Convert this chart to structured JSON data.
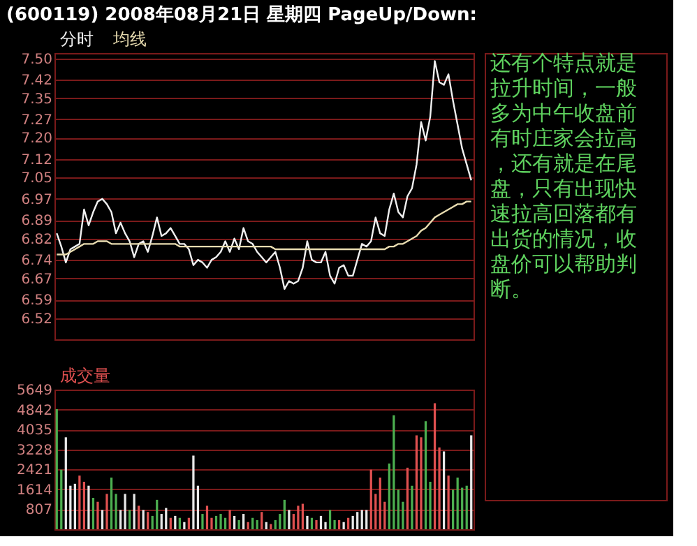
{
  "chart_data": [
    {
      "type": "line",
      "title": "(600119) 2008年08月21日 星期四 PageUp/Down:",
      "legend": "top left",
      "grid": "y",
      "tick_labels": "y",
      "annotations": [
        "还有个特点就是拉升时间，一般多为中午收盘前有时庄家会拉高，还有就是在尾盘，只有出现快速拉高回落都有出货的情况，收盘价可以帮助判断。"
      ],
      "categories": [
        null,
        null,
        null,
        null,
        null,
        null,
        null,
        null,
        null,
        null,
        null,
        null,
        null,
        null,
        null,
        null,
        null,
        null,
        null,
        null,
        null,
        null,
        null,
        null,
        null,
        null,
        null,
        null,
        null,
        null,
        null,
        null,
        null,
        null,
        null,
        null,
        null,
        null,
        null,
        null,
        null,
        null,
        null,
        null,
        null,
        null,
        null,
        null,
        null,
        null,
        null,
        null,
        null,
        null,
        null,
        null,
        null,
        null,
        null,
        null,
        null,
        null,
        null,
        null,
        null,
        null,
        null,
        null,
        null,
        null,
        null,
        null,
        null,
        null,
        null,
        null,
        null,
        null,
        null,
        null,
        null,
        null,
        null,
        null,
        null,
        null,
        null,
        null,
        null,
        null,
        null,
        null
      ],
      "ylim": [
        6.44,
        7.52
      ],
      "yticks": [
        {
          "value": 7.5,
          "label": "7.50"
        },
        7.42,
        7.35,
        7.27,
        {
          "value": 7.2,
          "label": "7.20"
        },
        7.12,
        7.05,
        6.97,
        6.89,
        6.82,
        6.74,
        6.67,
        6.59,
        6.52
      ],
      "series": [
        {
          "name": "分时",
          "color": "#f0f0f0",
          "values": [
            6.84,
            6.79,
            6.73,
            6.78,
            6.79,
            6.8,
            6.93,
            6.87,
            6.92,
            6.96,
            6.97,
            6.95,
            6.92,
            6.84,
            6.88,
            6.84,
            6.81,
            6.75,
            6.8,
            6.81,
            6.77,
            6.83,
            6.9,
            6.83,
            6.84,
            6.86,
            6.83,
            6.8,
            6.8,
            6.78,
            6.72,
            6.74,
            6.73,
            6.71,
            6.74,
            6.75,
            6.77,
            6.81,
            6.77,
            6.82,
            6.78,
            6.86,
            6.81,
            6.8,
            6.77,
            6.75,
            6.73,
            6.75,
            6.77,
            6.71,
            6.63,
            6.66,
            6.65,
            6.66,
            6.71,
            6.81,
            6.74,
            6.73,
            6.73,
            6.77,
            6.68,
            6.65,
            6.71,
            6.72,
            6.68,
            6.68,
            6.74,
            6.8,
            6.79,
            6.81,
            6.9,
            6.84,
            6.83,
            6.93,
            6.99,
            6.92,
            6.9,
            6.98,
            7.01,
            7.1,
            7.26,
            7.19,
            7.28,
            7.49,
            7.41,
            7.4,
            7.44,
            7.34,
            7.25,
            7.16,
            7.1,
            7.04
          ]
        },
        {
          "name": "均线",
          "color": "#e8dcb0",
          "values": [
            6.76,
            6.76,
            6.76,
            6.77,
            6.78,
            6.79,
            6.8,
            6.8,
            6.8,
            6.81,
            6.81,
            6.81,
            6.8,
            6.8,
            6.8,
            6.8,
            6.8,
            6.8,
            6.8,
            6.8,
            6.8,
            6.8,
            6.8,
            6.8,
            6.8,
            6.8,
            6.8,
            6.79,
            6.79,
            6.79,
            6.79,
            6.79,
            6.79,
            6.79,
            6.79,
            6.79,
            6.79,
            6.79,
            6.79,
            6.79,
            6.79,
            6.79,
            6.79,
            6.79,
            6.79,
            6.79,
            6.79,
            6.79,
            6.78,
            6.78,
            6.78,
            6.78,
            6.78,
            6.78,
            6.78,
            6.78,
            6.78,
            6.78,
            6.78,
            6.78,
            6.78,
            6.78,
            6.78,
            6.78,
            6.78,
            6.78,
            6.78,
            6.78,
            6.78,
            6.78,
            6.78,
            6.78,
            6.78,
            6.79,
            6.79,
            6.8,
            6.8,
            6.81,
            6.82,
            6.83,
            6.85,
            6.86,
            6.88,
            6.9,
            6.91,
            6.92,
            6.93,
            6.94,
            6.95,
            6.95,
            6.96,
            6.96
          ]
        }
      ]
    },
    {
      "type": "bar",
      "grid": "y",
      "tick_labels": "y",
      "legend": "top left",
      "categories": [
        null,
        null,
        null,
        null,
        null,
        null,
        null,
        null,
        null,
        null,
        null,
        null,
        null,
        null,
        null,
        null,
        null,
        null,
        null,
        null,
        null,
        null,
        null,
        null,
        null,
        null,
        null,
        null,
        null,
        null,
        null,
        null,
        null,
        null,
        null,
        null,
        null,
        null,
        null,
        null,
        null,
        null,
        null,
        null,
        null,
        null,
        null,
        null,
        null,
        null,
        null,
        null,
        null,
        null,
        null,
        null,
        null,
        null,
        null,
        null,
        null,
        null,
        null,
        null,
        null,
        null,
        null,
        null,
        null,
        null,
        null,
        null,
        null,
        null,
        null,
        null,
        null,
        null,
        null,
        null,
        null,
        null,
        null,
        null,
        null,
        null,
        null,
        null,
        null,
        null,
        null,
        null
      ],
      "ylim": [
        0,
        5649
      ],
      "yticks": [
        807,
        1614,
        2421,
        3228,
        4035,
        4842,
        5649
      ],
      "series": [
        {
          "name": "成交量",
          "color": "#e05050",
          "values": [
            4860,
            2410,
            3720,
            1760,
            1840,
            2170,
            1920,
            1760,
            1270,
            1110,
            780,
            1430,
            2090,
            1430,
            780,
            1430,
            780,
            1430,
            950,
            780,
            700,
            540,
            1190,
            620,
            860,
            460,
            540,
            460,
            290,
            460,
            2980,
            1760,
            620,
            950,
            460,
            540,
            620,
            460,
            780,
            540,
            370,
            620,
            290,
            460,
            370,
            700,
            290,
            210,
            370,
            620,
            1190,
            780,
            620,
            950,
            1030,
            540,
            460,
            370,
            540,
            290,
            780,
            370,
            370,
            290,
            460,
            540,
            700,
            780,
            780,
            2410,
            1430,
            2090,
            1110,
            2660,
            4610,
            1600,
            1110,
            2490,
            1760,
            3800,
            3720,
            4370,
            1920,
            5100,
            3310,
            3150,
            2170,
            1600,
            2090,
            1680,
            1760,
            3800
          ],
          "colors": [
            "#4caf50",
            "#4caf50",
            "#e8e8e8",
            "#e8e8e8",
            "#e8e8e8",
            "#e05050",
            "#e05050",
            "#e8e8e8",
            "#4caf50",
            "#e05050",
            "#e8e8e8",
            "#e05050",
            "#4caf50",
            "#4caf50",
            "#e8e8e8",
            "#e8e8e8",
            "#4caf50",
            "#e8e8e8",
            "#e05050",
            "#e8e8e8",
            "#e05050",
            "#4caf50",
            "#4caf50",
            "#e8e8e8",
            "#e8e8e8",
            "#e05050",
            "#e8e8e8",
            "#4caf50",
            "#e8e8e8",
            "#e05050",
            "#e8e8e8",
            "#e8e8e8",
            "#4caf50",
            "#e05050",
            "#e05050",
            "#4caf50",
            "#4caf50",
            "#4caf50",
            "#e05050",
            "#e8e8e8",
            "#4caf50",
            "#e8e8e8",
            "#e05050",
            "#4caf50",
            "#4caf50",
            "#e05050",
            "#e8e8e8",
            "#e05050",
            "#4caf50",
            "#4caf50",
            "#4caf50",
            "#e8e8e8",
            "#e05050",
            "#e05050",
            "#e05050",
            "#e8e8e8",
            "#4caf50",
            "#e05050",
            "#e8e8e8",
            "#e8e8e8",
            "#4caf50",
            "#4caf50",
            "#e05050",
            "#e8e8e8",
            "#e05050",
            "#e8e8e8",
            "#e8e8e8",
            "#e8e8e8",
            "#e8e8e8",
            "#e05050",
            "#e05050",
            "#e05050",
            "#e05050",
            "#4caf50",
            "#4caf50",
            "#4caf50",
            "#4caf50",
            "#e05050",
            "#4caf50",
            "#e05050",
            "#e05050",
            "#4caf50",
            "#4caf50",
            "#e05050",
            "#e05050",
            "#e8e8e8",
            "#e05050",
            "#4caf50",
            "#4caf50",
            "#4caf50",
            "#4caf50",
            "#e8e8e8"
          ]
        }
      ]
    }
  ]
}
